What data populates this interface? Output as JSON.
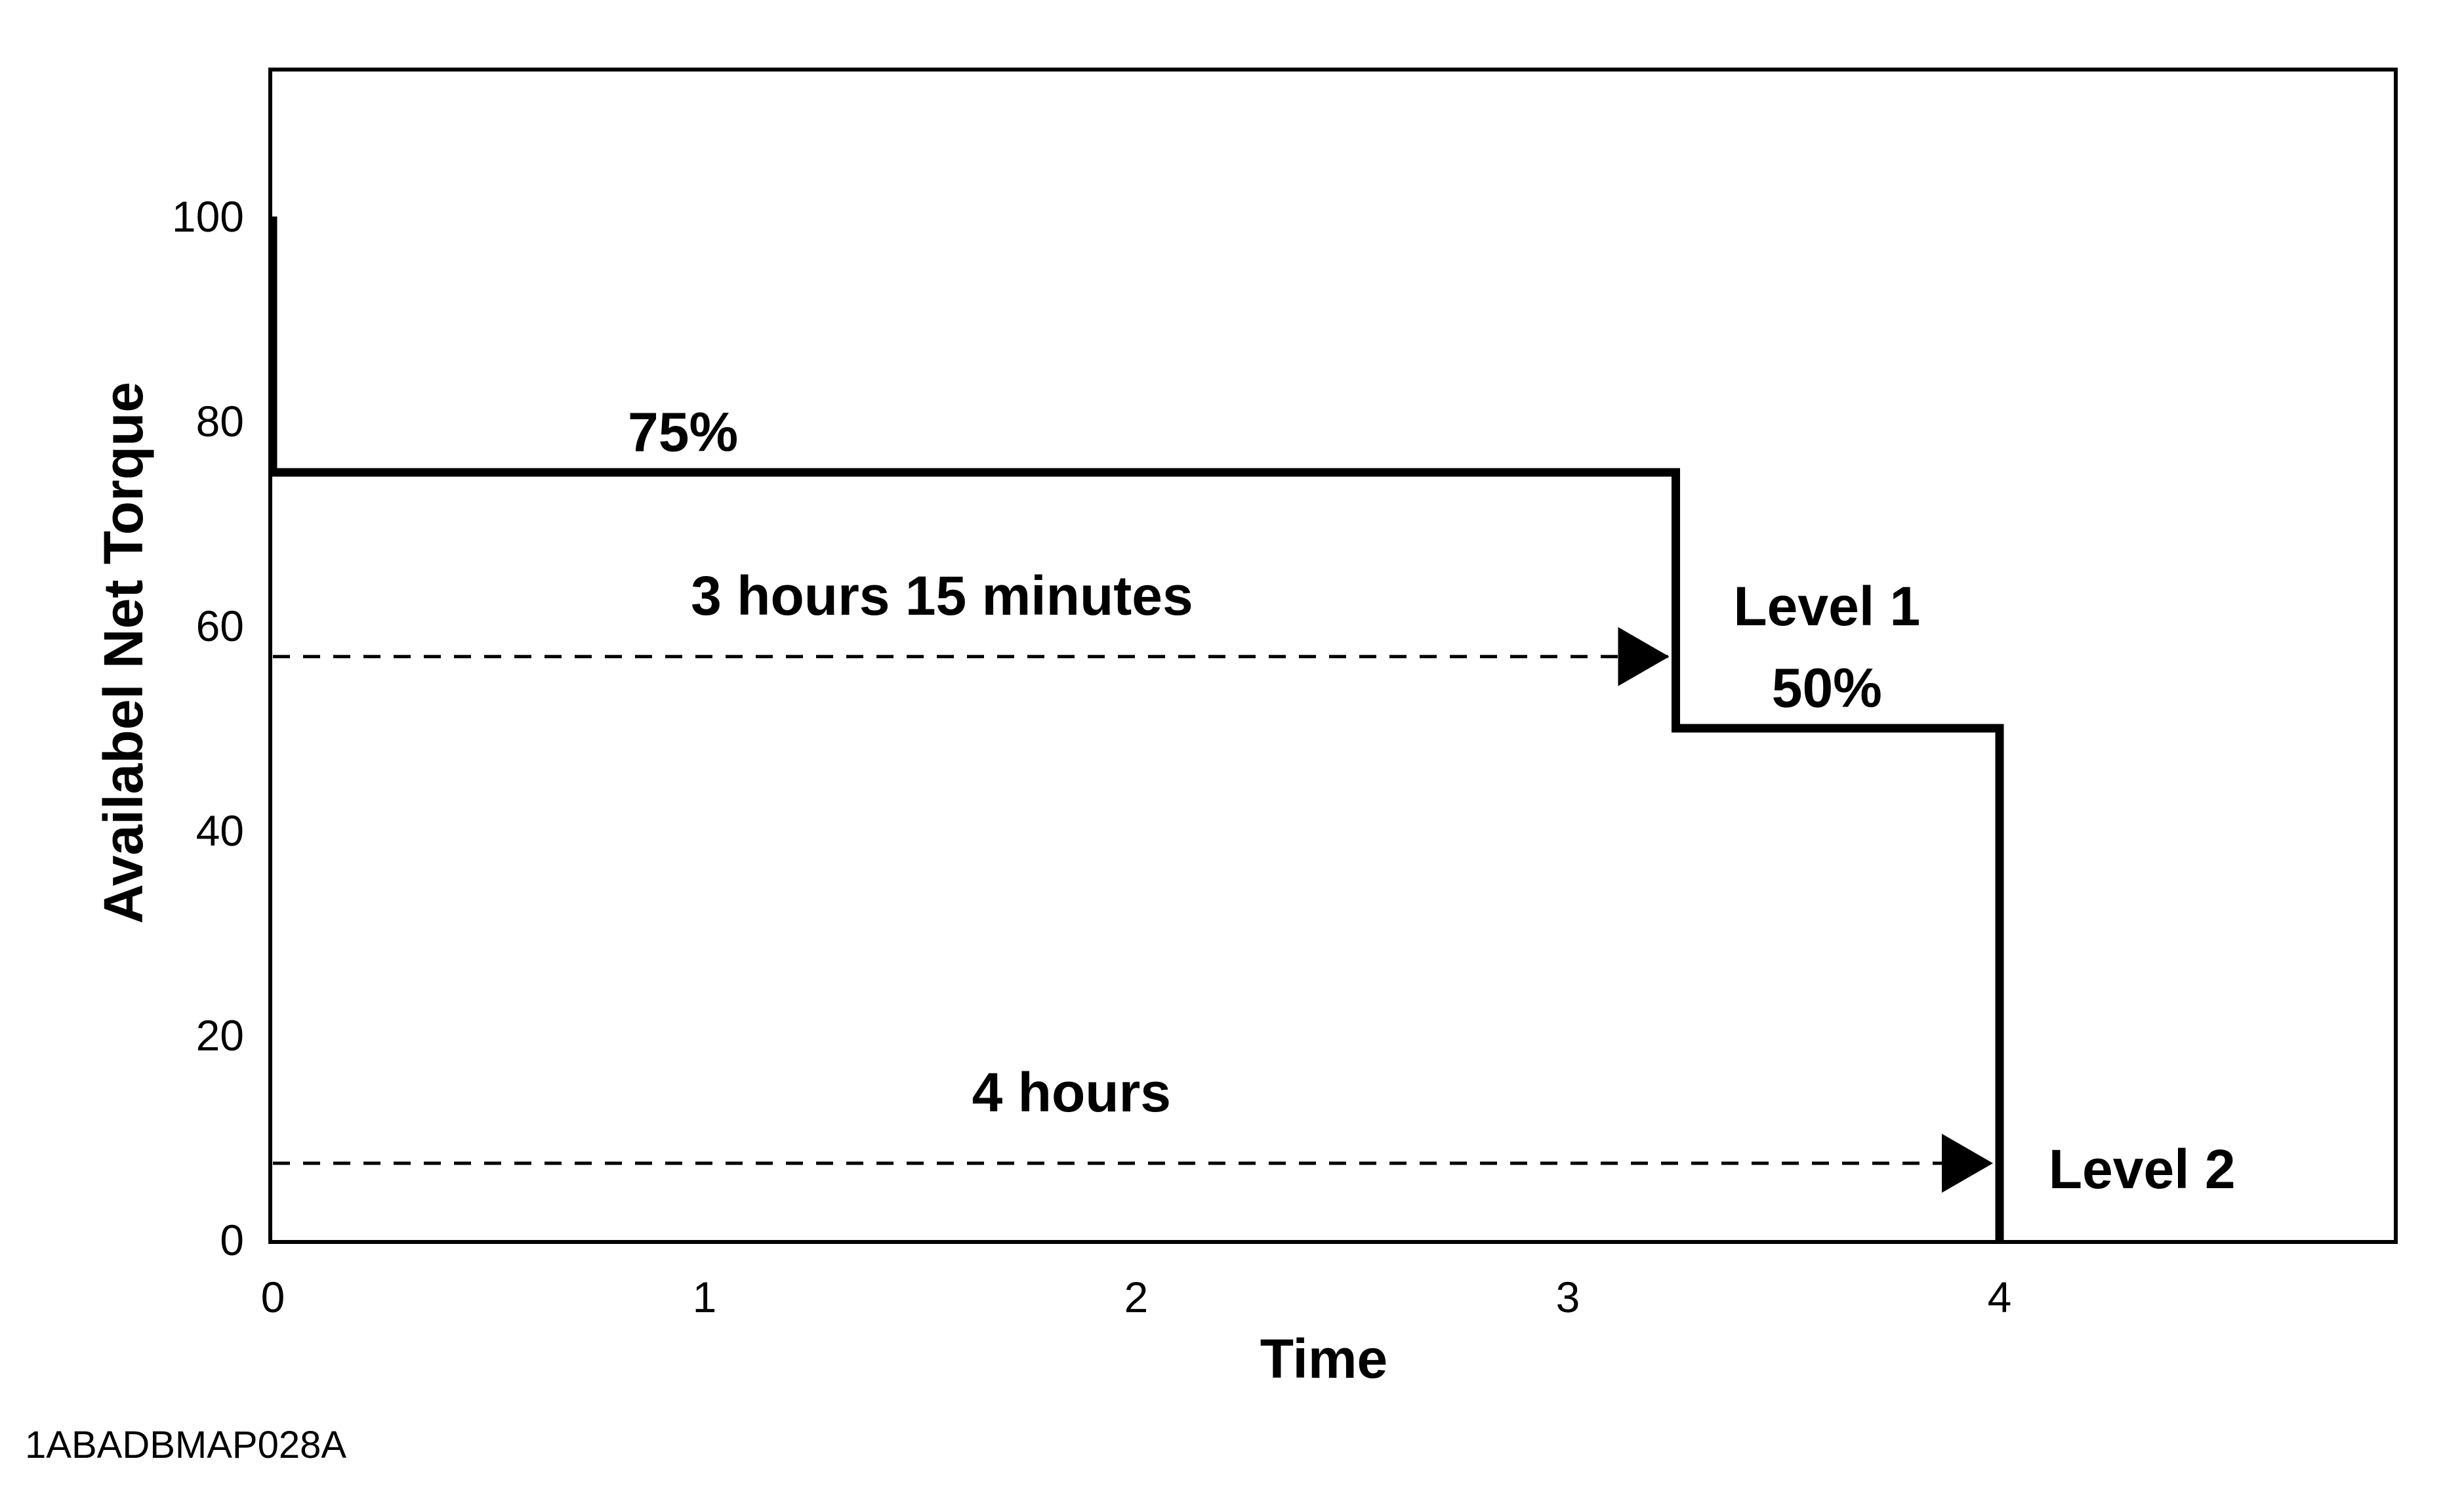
{
  "chart_data": {
    "type": "line",
    "title": "",
    "xlabel": "Time",
    "ylabel": "Availabel Net Torque",
    "xlim": [
      0,
      4.9
    ],
    "ylim": [
      0,
      115
    ],
    "x_ticks": [
      0,
      1,
      2,
      3,
      4
    ],
    "x_tick_labels": [
      "0",
      "1",
      "2",
      "3",
      "4"
    ],
    "y_ticks": [
      0,
      20,
      40,
      60,
      80,
      100
    ],
    "y_tick_labels": [
      "0",
      "20",
      "40",
      "60",
      "80",
      "100"
    ],
    "grid": false,
    "legend": "none",
    "series": [
      {
        "style": "step",
        "color": "#000000",
        "points": [
          {
            "x": 0,
            "y": 100
          },
          {
            "x": 0,
            "y": 75
          },
          {
            "x": 3.25,
            "y": 75
          },
          {
            "x": 3.25,
            "y": 50
          },
          {
            "x": 4,
            "y": 50
          },
          {
            "x": 4,
            "y": 0
          }
        ]
      }
    ],
    "arrows": [
      {
        "x_start": 0,
        "x_end": 3.25,
        "y": 57
      },
      {
        "x_start": 0,
        "x_end": 4,
        "y": 7.5
      }
    ],
    "annotations": [
      {
        "text": "75%",
        "x": 0.95,
        "y": 79
      },
      {
        "text": "3 hours 15 minutes",
        "x": 1.55,
        "y": 63
      },
      {
        "text": "Level 1",
        "x": 3.6,
        "y": 62
      },
      {
        "text": "50%",
        "x": 3.6,
        "y": 54
      },
      {
        "text": "4 hours",
        "x": 1.85,
        "y": 14.5
      },
      {
        "text": "Level 2",
        "x": 4.33,
        "y": 7
      }
    ]
  },
  "footer_code": "1ABADBMAP028A"
}
